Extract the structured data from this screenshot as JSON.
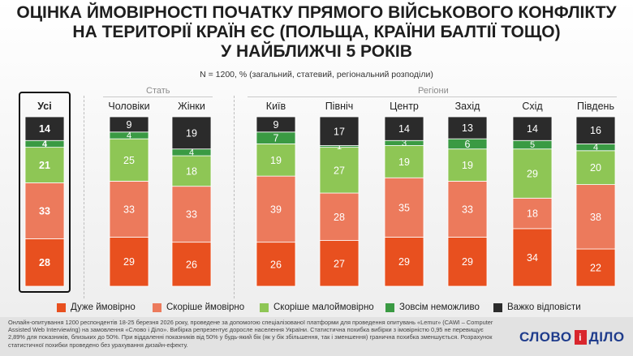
{
  "title_lines": [
    "ОЦІНКА ЙМОВІРНОСТІ ПОЧАТКУ ПРЯМОГО ВІЙСЬКОВОГО КОНФЛІКТУ",
    "НА ТЕРИТОРІЇ КРАЇН ЄС (ПОЛЬЩА, КРАЇНИ БАЛТІЇ ТОЩО)",
    "У НАЙБЛИЖЧІ 5 РОКІВ"
  ],
  "subtitle": "N = 1200, %  (загальний, статевий, регіональний розподіли)",
  "group_labels": {
    "gender": "Стать",
    "regions": "Регіони"
  },
  "legend": [
    {
      "label": "Дуже ймовірно",
      "color": "#e8501f"
    },
    {
      "label": "Скоріше ймовірно",
      "color": "#ec7a5c"
    },
    {
      "label": "Скоріше малоймовірно",
      "color": "#8ec655"
    },
    {
      "label": "Зовсім неможливо",
      "color": "#3a9a43"
    },
    {
      "label": "Важко відповісти",
      "color": "#2b2b2b"
    }
  ],
  "chart_data": {
    "type": "bar",
    "stacked": true,
    "orientation": "vertical",
    "categories": [
      "Усі",
      "Чоловіки",
      "Жінки",
      "Київ",
      "Північ",
      "Центр",
      "Захід",
      "Схід",
      "Південь"
    ],
    "series": [
      {
        "name": "Дуже ймовірно",
        "color": "#e8501f",
        "values": [
          28,
          29,
          26,
          26,
          27,
          29,
          29,
          34,
          22
        ]
      },
      {
        "name": "Скоріше ймовірно",
        "color": "#ec7a5c",
        "values": [
          33,
          33,
          33,
          39,
          28,
          35,
          33,
          18,
          38
        ]
      },
      {
        "name": "Скоріше малоймовірно",
        "color": "#8ec655",
        "values": [
          21,
          25,
          18,
          19,
          27,
          19,
          19,
          29,
          20
        ]
      },
      {
        "name": "Зовсім неможливо",
        "color": "#3a9a43",
        "values": [
          4,
          4,
          4,
          7,
          1,
          3,
          6,
          5,
          4
        ]
      },
      {
        "name": "Важко відповісти",
        "color": "#2b2b2b",
        "values": [
          14,
          9,
          19,
          9,
          17,
          14,
          13,
          14,
          16
        ]
      }
    ],
    "highlighted_category": "Усі",
    "grid": false,
    "legend_position": "bottom"
  },
  "footnote": "Онлайн-опитування 1200 респондентів 18-25 березня 2026 року, проведене за допомогою спеціалізованої платформи для проведення опитувань «Lemur» (CAWI – Computer Assisted Web Interviewing) на замовлення «Слово і Діло». Вибірка репрезентує доросле населення України. Статистична похибка вибірки з імовірністю 0,95 не перевищує 2,89% для показників, близьких до 50%. При віддаленні показників від 50% у будь-який бік (як у бік збільшення, так і зменшення) гранична похибка зменшується. Розрахунок статистичної похибки проведено без урахування дизайн-ефекту.",
  "logo": {
    "left": "СЛОВО",
    "mid": "і",
    "right": "ДІЛО"
  }
}
